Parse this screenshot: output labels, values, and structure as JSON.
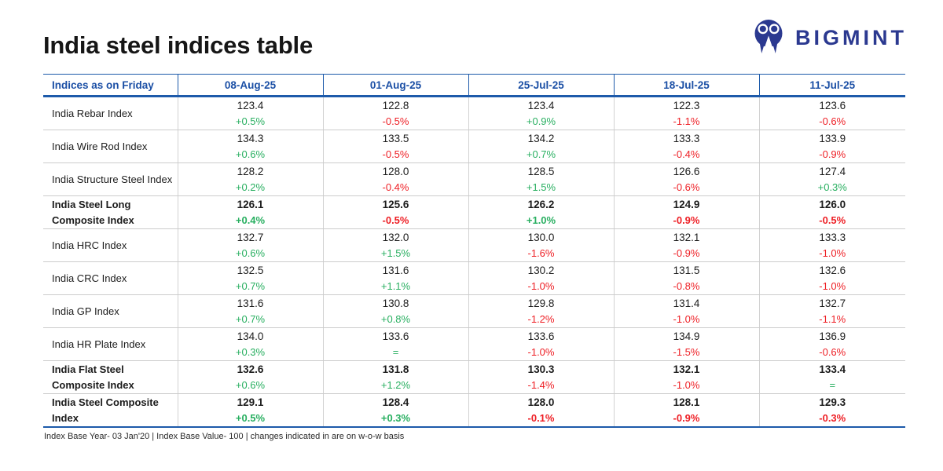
{
  "page": {
    "title": "India steel indices table",
    "footnote": "Index Base Year- 03 Jan'20 | Index Base Value- 100 | changes indicated in are on w-o-w basis"
  },
  "logo": {
    "brand": "BIGMINT",
    "icon": "bigmint-monogram-icon"
  },
  "colors": {
    "accent_blue": "#1b4fa5",
    "line_blue": "#1d5aaa",
    "brand_navy": "#2b3990",
    "positive_green": "#28af60",
    "negative_red": "#ee1e24",
    "separator_gray": "#cbcbcb"
  },
  "chart_data": {
    "type": "table",
    "title": "India steel indices table",
    "columns": [
      "Indices as on Friday",
      "08-Aug-25",
      "01-Aug-25",
      "25-Jul-25",
      "18-Jul-25",
      "11-Jul-25"
    ],
    "rows": [
      {
        "label": "India Rebar Index",
        "bold": false,
        "pct_bold": false,
        "values": [
          "123.4",
          "122.8",
          "123.4",
          "122.3",
          "123.6"
        ],
        "changes": [
          "+0.5%",
          "-0.5%",
          "+0.9%",
          "-1.1%",
          "-0.6%"
        ]
      },
      {
        "label": "India Wire Rod Index",
        "bold": false,
        "pct_bold": false,
        "values": [
          "134.3",
          "133.5",
          "134.2",
          "133.3",
          "133.9"
        ],
        "changes": [
          "+0.6%",
          "-0.5%",
          "+0.7%",
          "-0.4%",
          "-0.9%"
        ]
      },
      {
        "label": "India Structure Steel Index",
        "bold": false,
        "pct_bold": false,
        "values": [
          "128.2",
          "128.0",
          "128.5",
          "126.6",
          "127.4"
        ],
        "changes": [
          "+0.2%",
          "-0.4%",
          "+1.5%",
          "-0.6%",
          "+0.3%"
        ]
      },
      {
        "label": "India Steel Long Composite Index",
        "bold": true,
        "pct_bold": true,
        "values": [
          "126.1",
          "125.6",
          "126.2",
          "124.9",
          "126.0"
        ],
        "changes": [
          "+0.4%",
          "-0.5%",
          "+1.0%",
          "-0.9%",
          "-0.5%"
        ]
      },
      {
        "label": "India HRC Index",
        "bold": false,
        "pct_bold": false,
        "values": [
          "132.7",
          "132.0",
          "130.0",
          "132.1",
          "133.3"
        ],
        "changes": [
          "+0.6%",
          "+1.5%",
          "-1.6%",
          "-0.9%",
          "-1.0%"
        ]
      },
      {
        "label": "India CRC Index",
        "bold": false,
        "pct_bold": false,
        "values": [
          "132.5",
          "131.6",
          "130.2",
          "131.5",
          "132.6"
        ],
        "changes": [
          "+0.7%",
          "+1.1%",
          "-1.0%",
          "-0.8%",
          "-1.0%"
        ]
      },
      {
        "label": "India GP Index",
        "bold": false,
        "pct_bold": false,
        "values": [
          "131.6",
          "130.8",
          "129.8",
          "131.4",
          "132.7"
        ],
        "changes": [
          "+0.7%",
          "+0.8%",
          "-1.2%",
          "-1.0%",
          "-1.1%"
        ]
      },
      {
        "label": "India HR Plate Index",
        "bold": false,
        "pct_bold": false,
        "values": [
          "134.0",
          "133.6",
          "133.6",
          "134.9",
          "136.9"
        ],
        "changes": [
          "+0.3%",
          "=",
          "-1.0%",
          "-1.5%",
          "-0.6%"
        ]
      },
      {
        "label": "India Flat Steel Composite Index",
        "bold": true,
        "pct_bold": false,
        "values": [
          "132.6",
          "131.8",
          "130.3",
          "132.1",
          "133.4"
        ],
        "changes": [
          "+0.6%",
          "+1.2%",
          "-1.4%",
          "-1.0%",
          "="
        ]
      },
      {
        "label": "India Steel Composite Index",
        "bold": true,
        "pct_bold": true,
        "values": [
          "129.1",
          "128.4",
          "128.0",
          "128.1",
          "129.3"
        ],
        "changes": [
          "+0.5%",
          "+0.3%",
          "-0.1%",
          "-0.9%",
          "-0.3%"
        ]
      }
    ]
  }
}
